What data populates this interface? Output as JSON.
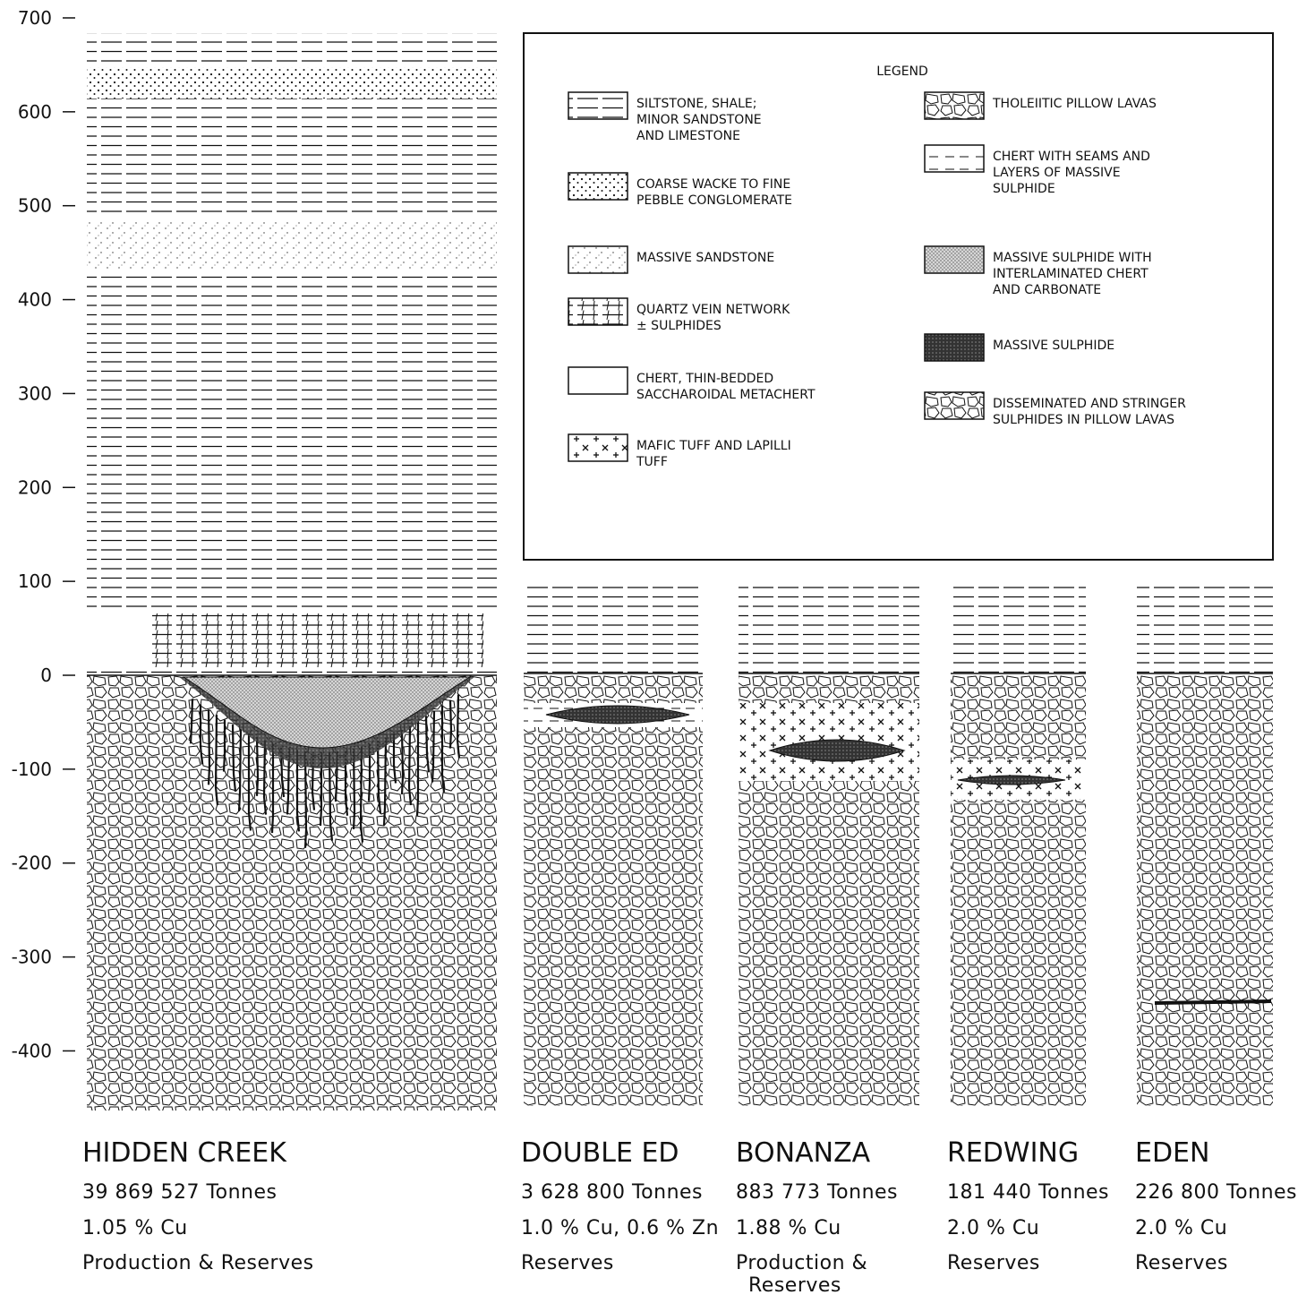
{
  "axis": {
    "ticks": [
      700,
      600,
      500,
      400,
      300,
      200,
      100,
      0,
      -100,
      -200,
      -300,
      -400
    ]
  },
  "legend": {
    "title": "LEGEND",
    "items": [
      {
        "lines": [
          "SILTSTONE, SHALE;",
          "MINOR SANDSTONE",
          "AND LIMESTONE"
        ]
      },
      {
        "lines": [
          "COARSE WACKE TO FINE",
          "PEBBLE CONGLOMERATE"
        ]
      },
      {
        "lines": [
          "MASSIVE SANDSTONE"
        ]
      },
      {
        "lines": [
          "QUARTZ VEIN NETWORK",
          "± SULPHIDES"
        ]
      },
      {
        "lines": [
          "CHERT, THIN-BEDDED",
          "SACCHAROIDAL METACHERT"
        ]
      },
      {
        "lines": [
          "MAFIC TUFF AND LAPILLI",
          "TUFF"
        ]
      },
      {
        "lines": [
          "THOLEIITIC PILLOW LAVAS"
        ]
      },
      {
        "lines": [
          "CHERT WITH SEAMS AND",
          "LAYERS OF MASSIVE",
          "SULPHIDE"
        ]
      },
      {
        "lines": [
          "MASSIVE SULPHIDE WITH",
          "INTERLAMINATED CHERT",
          "AND CARBONATE"
        ]
      },
      {
        "lines": [
          "MASSIVE SULPHIDE"
        ]
      },
      {
        "lines": [
          "DISSEMINATED  AND  STRINGER",
          "SULPHIDES IN PILLOW LAVAS"
        ]
      }
    ]
  },
  "deposits": [
    {
      "name": "HIDDEN  CREEK",
      "tonnage": "39 869 527  Tonnes",
      "grade": "1.05 % Cu",
      "status": [
        "Production & Reserves"
      ]
    },
    {
      "name": "DOUBLE ED",
      "tonnage": "3 628 800 Tonnes",
      "grade": "1.0 % Cu, 0.6 % Zn",
      "status": [
        "Reserves"
      ]
    },
    {
      "name": "BONANZA",
      "tonnage": "883 773 Tonnes",
      "grade": "1.88 % Cu",
      "status": [
        "Production &",
        "Reserves"
      ]
    },
    {
      "name": "REDWING",
      "tonnage": "181 440 Tonnes",
      "grade": "2.0 % Cu",
      "status": [
        "Reserves"
      ]
    },
    {
      "name": "EDEN",
      "tonnage": "226 800 Tonnes",
      "grade": "2.0 % Cu",
      "status": [
        "Reserves"
      ]
    }
  ]
}
